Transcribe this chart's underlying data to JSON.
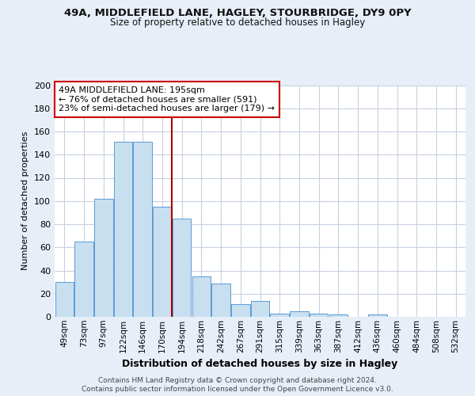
{
  "title": "49A, MIDDLEFIELD LANE, HAGLEY, STOURBRIDGE, DY9 0PY",
  "subtitle": "Size of property relative to detached houses in Hagley",
  "xlabel": "Distribution of detached houses by size in Hagley",
  "ylabel": "Number of detached properties",
  "bar_labels": [
    "49sqm",
    "73sqm",
    "97sqm",
    "122sqm",
    "146sqm",
    "170sqm",
    "194sqm",
    "218sqm",
    "242sqm",
    "267sqm",
    "291sqm",
    "315sqm",
    "339sqm",
    "363sqm",
    "387sqm",
    "412sqm",
    "436sqm",
    "460sqm",
    "484sqm",
    "508sqm",
    "532sqm"
  ],
  "bar_values": [
    30,
    65,
    102,
    151,
    151,
    95,
    85,
    35,
    29,
    11,
    14,
    3,
    5,
    3,
    2,
    0,
    2,
    0,
    0,
    0,
    0
  ],
  "bar_color": "#c8dff0",
  "bar_edge_color": "#5b9bd5",
  "vline_color": "#aa0000",
  "annotation_text": "49A MIDDLEFIELD LANE: 195sqm\n← 76% of detached houses are smaller (591)\n23% of semi-detached houses are larger (179) →",
  "annotation_box_color": "#ffffff",
  "annotation_box_edge": "#cc0000",
  "ylim": [
    0,
    200
  ],
  "yticks": [
    0,
    20,
    40,
    60,
    80,
    100,
    120,
    140,
    160,
    180,
    200
  ],
  "footer1": "Contains HM Land Registry data © Crown copyright and database right 2024.",
  "footer2": "Contains public sector information licensed under the Open Government Licence v3.0.",
  "bg_color": "#e8eef8",
  "plot_bg": "#ffffff",
  "grid_color": "#c8d0e0"
}
